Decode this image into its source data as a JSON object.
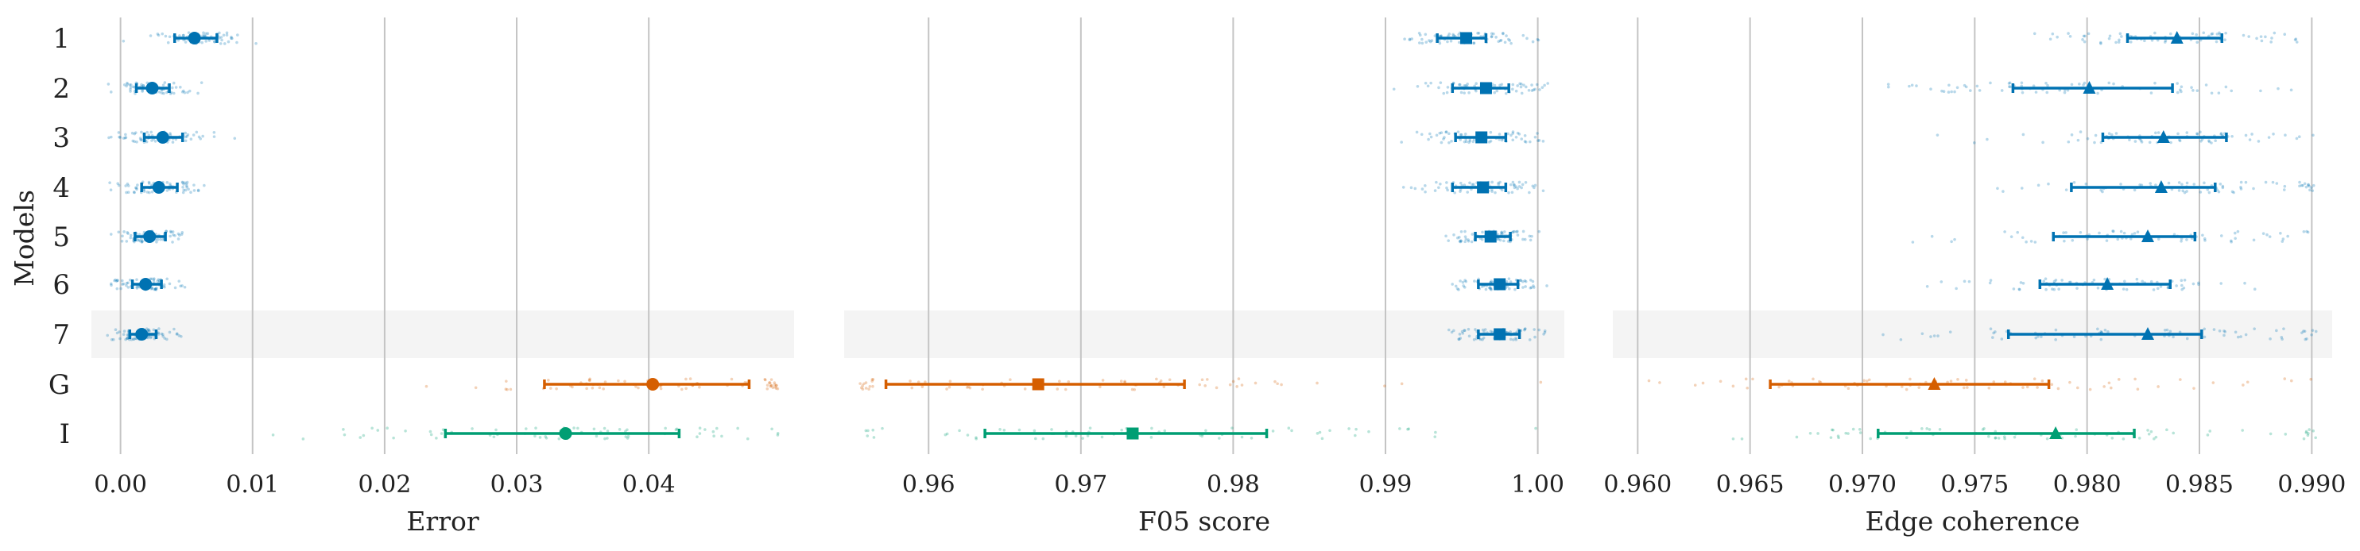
{
  "colors": {
    "blue": "#0072b2",
    "orange": "#d55e00",
    "green": "#009e73",
    "grid": "#c4c4c4",
    "highlight_band": "#f4f4f4"
  },
  "y_axis_label": "Models",
  "row_labels": [
    "1",
    "2",
    "3",
    "4",
    "5",
    "6",
    "7",
    "G",
    "I"
  ],
  "highlighted_row": "7",
  "chart_data": [
    {
      "type": "scatter",
      "title": "",
      "xlabel": "Error",
      "ylabel": "Models",
      "xlim": [
        -0.001,
        0.0498
      ],
      "xticks": [
        0.0,
        0.01,
        0.02,
        0.03,
        0.04
      ],
      "xtick_labels": [
        "0.00",
        "0.01",
        "0.02",
        "0.03",
        "0.04"
      ],
      "grid": "vertical",
      "marker": "circle",
      "series": [
        {
          "row": "1",
          "mean": 0.0056,
          "ci": [
            0.0041,
            0.0073
          ],
          "color": "blue"
        },
        {
          "row": "2",
          "mean": 0.0024,
          "ci": [
            0.0012,
            0.0037
          ],
          "color": "blue"
        },
        {
          "row": "3",
          "mean": 0.0032,
          "ci": [
            0.0018,
            0.0047
          ],
          "color": "blue"
        },
        {
          "row": "4",
          "mean": 0.0029,
          "ci": [
            0.0016,
            0.0043
          ],
          "color": "blue"
        },
        {
          "row": "5",
          "mean": 0.0022,
          "ci": [
            0.0011,
            0.0034
          ],
          "color": "blue"
        },
        {
          "row": "6",
          "mean": 0.0019,
          "ci": [
            0.0009,
            0.0031
          ],
          "color": "blue"
        },
        {
          "row": "7",
          "mean": 0.0016,
          "ci": [
            0.0007,
            0.0027
          ],
          "color": "blue"
        },
        {
          "row": "G",
          "mean": 0.0403,
          "ci": [
            0.0321,
            0.0476
          ],
          "color": "orange"
        },
        {
          "row": "I",
          "mean": 0.0337,
          "ci": [
            0.0246,
            0.0423
          ],
          "color": "green"
        }
      ]
    },
    {
      "type": "scatter",
      "title": "",
      "xlabel": "F05 score",
      "ylabel": "",
      "xlim": [
        0.9555,
        1.0007
      ],
      "xticks": [
        0.96,
        0.97,
        0.98,
        0.99,
        1.0
      ],
      "xtick_labels": [
        "0.96",
        "0.97",
        "0.98",
        "0.99",
        "1.00"
      ],
      "grid": "vertical",
      "marker": "square",
      "series": [
        {
          "row": "1",
          "mean": 0.9953,
          "ci": [
            0.9934,
            0.9966
          ],
          "color": "blue"
        },
        {
          "row": "2",
          "mean": 0.9966,
          "ci": [
            0.9944,
            0.9981
          ],
          "color": "blue"
        },
        {
          "row": "3",
          "mean": 0.9963,
          "ci": [
            0.9946,
            0.9979
          ],
          "color": "blue"
        },
        {
          "row": "4",
          "mean": 0.9964,
          "ci": [
            0.9944,
            0.9979
          ],
          "color": "blue"
        },
        {
          "row": "5",
          "mean": 0.9969,
          "ci": [
            0.9959,
            0.9982
          ],
          "color": "blue"
        },
        {
          "row": "6",
          "mean": 0.9975,
          "ci": [
            0.9961,
            0.9987
          ],
          "color": "blue"
        },
        {
          "row": "7",
          "mean": 0.9975,
          "ci": [
            0.9961,
            0.9988
          ],
          "color": "blue"
        },
        {
          "row": "G",
          "mean": 0.9672,
          "ci": [
            0.9572,
            0.9768
          ],
          "color": "orange"
        },
        {
          "row": "I",
          "mean": 0.9734,
          "ci": [
            0.9637,
            0.9822
          ],
          "color": "green"
        }
      ]
    },
    {
      "type": "scatter",
      "title": "",
      "xlabel": "Edge coherence",
      "ylabel": "",
      "xlim": [
        0.9596,
        0.9902
      ],
      "xticks": [
        0.96,
        0.965,
        0.97,
        0.975,
        0.98,
        0.985,
        0.99
      ],
      "xtick_labels": [
        "0.960",
        "0.965",
        "0.970",
        "0.975",
        "0.980",
        "0.985",
        "0.990"
      ],
      "grid": "vertical",
      "marker": "triangle",
      "series": [
        {
          "row": "1",
          "mean": 0.984,
          "ci": [
            0.9818,
            0.986
          ],
          "color": "blue"
        },
        {
          "row": "2",
          "mean": 0.9801,
          "ci": [
            0.9767,
            0.9838
          ],
          "color": "blue"
        },
        {
          "row": "3",
          "mean": 0.9834,
          "ci": [
            0.9807,
            0.9862
          ],
          "color": "blue"
        },
        {
          "row": "4",
          "mean": 0.9833,
          "ci": [
            0.9793,
            0.9857
          ],
          "color": "blue"
        },
        {
          "row": "5",
          "mean": 0.9827,
          "ci": [
            0.9785,
            0.9848
          ],
          "color": "blue"
        },
        {
          "row": "6",
          "mean": 0.9809,
          "ci": [
            0.9779,
            0.9837
          ],
          "color": "blue"
        },
        {
          "row": "7",
          "mean": 0.9827,
          "ci": [
            0.9765,
            0.9851
          ],
          "color": "blue"
        },
        {
          "row": "G",
          "mean": 0.9732,
          "ci": [
            0.9659,
            0.9783
          ],
          "color": "orange"
        },
        {
          "row": "I",
          "mean": 0.9786,
          "ci": [
            0.9707,
            0.9821
          ],
          "color": "green"
        }
      ]
    }
  ]
}
